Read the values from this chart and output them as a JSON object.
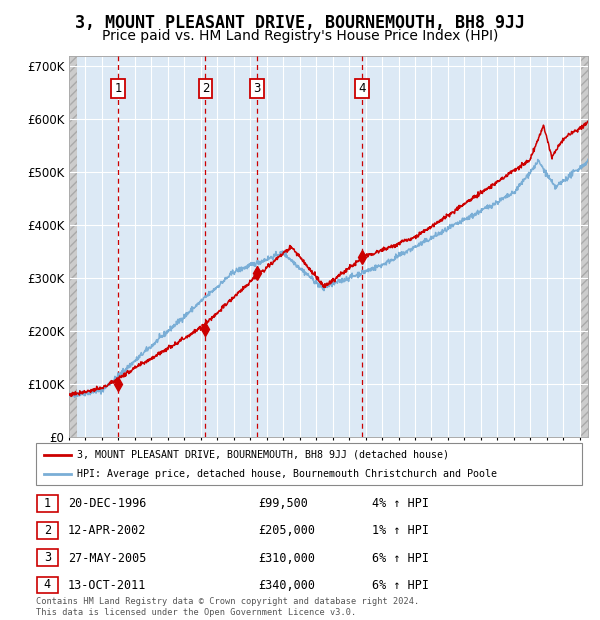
{
  "title": "3, MOUNT PLEASANT DRIVE, BOURNEMOUTH, BH8 9JJ",
  "subtitle": "Price paid vs. HM Land Registry's House Price Index (HPI)",
  "title_fontsize": 12,
  "subtitle_fontsize": 10,
  "ylim": [
    0,
    720000
  ],
  "yticks": [
    0,
    100000,
    200000,
    300000,
    400000,
    500000,
    600000,
    700000
  ],
  "ytick_labels": [
    "£0",
    "£100K",
    "£200K",
    "£300K",
    "£400K",
    "£500K",
    "£600K",
    "£700K"
  ],
  "plot_bg_color": "#dce9f5",
  "grid_color": "#ffffff",
  "red_line_color": "#cc0000",
  "blue_line_color": "#7aaed6",
  "purchase_dates": [
    1996.97,
    2002.28,
    2005.41,
    2011.79
  ],
  "purchase_prices": [
    99500,
    205000,
    310000,
    340000
  ],
  "purchase_labels": [
    "1",
    "2",
    "3",
    "4"
  ],
  "legend_red": "3, MOUNT PLEASANT DRIVE, BOURNEMOUTH, BH8 9JJ (detached house)",
  "legend_blue": "HPI: Average price, detached house, Bournemouth Christchurch and Poole",
  "table_rows": [
    [
      "1",
      "20-DEC-1996",
      "£99,500",
      "4% ↑ HPI"
    ],
    [
      "2",
      "12-APR-2002",
      "£205,000",
      "1% ↑ HPI"
    ],
    [
      "3",
      "27-MAY-2005",
      "£310,000",
      "6% ↑ HPI"
    ],
    [
      "4",
      "13-OCT-2011",
      "£340,000",
      "6% ↑ HPI"
    ]
  ],
  "footer": "Contains HM Land Registry data © Crown copyright and database right 2024.\nThis data is licensed under the Open Government Licence v3.0.",
  "xmin": 1994,
  "xmax": 2025.5
}
